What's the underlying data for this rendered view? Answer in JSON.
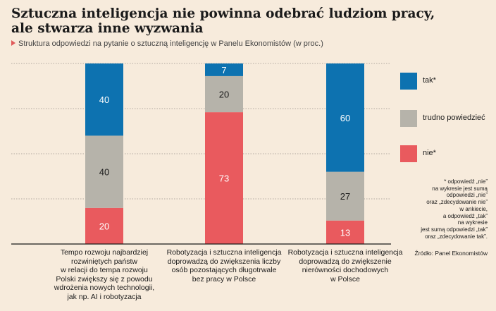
{
  "title_lines": [
    "Sztuczna inteligencja nie powinna odebrać ludziom pracy,",
    "ale stwarza inne wyzwania"
  ],
  "subtitle": "Struktura odpowiedzi na pytanie o sztuczną inteligencję w Panelu Ekonomistów (w proc.)",
  "colors": {
    "tak": "#0d72b0",
    "trudno": "#b6b3aa",
    "nie": "#e95a5e",
    "background": "#f7ebdc",
    "accent": "#e05a5a"
  },
  "chart_data": {
    "type": "bar",
    "stacked": true,
    "title": "Sztuczna inteligencja nie powinna odebrać ludziom pracy, ale stwarza inne wyzwania",
    "subtitle": "Struktura odpowiedzi na pytanie o sztuczną inteligencję w Panelu Ekonomistów (w proc.)",
    "ylim": [
      0,
      100
    ],
    "grid": true,
    "legend_position": "right",
    "categories": [
      [
        "Tempo rozwoju najbardziej",
        "rozwiniętych państw",
        "w relacji do tempa rozwoju",
        "Polski zwiększy się z powodu",
        "wdrożenia nowych technologii,",
        "jak np. AI i robotyzacja"
      ],
      [
        "Robotyzacja i sztuczna inteligencja",
        "doprowadzą do zwiększenia liczby",
        "osób pozostających długotrwale",
        "bez pracy w Polsce"
      ],
      [
        "Robotyzacja i sztuczna inteligencja",
        "doprowadzą do zwiększenie",
        "nierówności dochodowych",
        "w Polsce"
      ]
    ],
    "series": [
      {
        "name": "nie*",
        "color": "#e95a5e",
        "values": [
          20,
          73,
          13
        ]
      },
      {
        "name": "trudno powiedzieć",
        "color": "#b6b3aa",
        "values": [
          40,
          20,
          27
        ]
      },
      {
        "name": "tak*",
        "color": "#0d72b0",
        "values": [
          40,
          7,
          60
        ]
      }
    ]
  },
  "legend": [
    {
      "label": "tak*",
      "color": "#0d72b0"
    },
    {
      "label": "trudno powiedzieć",
      "color": "#b6b3aa"
    },
    {
      "label": "nie*",
      "color": "#e95a5e"
    }
  ],
  "footnote": [
    "* odpowiedź „nie”",
    "na wykresie jest sumą",
    "odpowiedzi „nie”",
    "oraz „zdecydowanie nie”",
    "w ankiecie,",
    "a odpowiedź „tak”",
    "na wykresie",
    "jest sumą odpowiedzi „tak”",
    "oraz „zdecydowanie tak”."
  ],
  "source": "Źródło: Panel Ekonomistów"
}
